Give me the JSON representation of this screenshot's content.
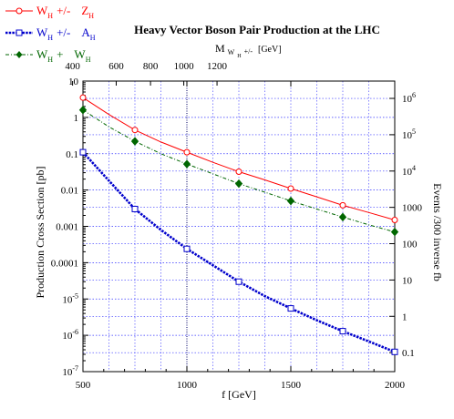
{
  "chart_data": {
    "type": "line",
    "title": "Heavy Vector Boson Pair Production at the LHC",
    "xlabel": "f [GeV]",
    "ylabel": "Production Cross Section [pb]",
    "y2label": "Events /300 inverse fb",
    "top_axis_label": "M_{W_{H}+/-} [GeV]",
    "top_axis_label_parts": {
      "main": "M",
      "sub1": "W",
      "sub2": "H",
      "sup": "+/-",
      "unit": "[GeV]"
    },
    "xlim": [
      500,
      2000
    ],
    "ylim": [
      1e-07,
      10
    ],
    "y_scale": "log",
    "grid": true,
    "legend_position": "top-left, outside plot",
    "x_ticks": [
      {
        "value": 500,
        "label": "500"
      },
      {
        "value": 1000,
        "label": "1000"
      },
      {
        "value": 1500,
        "label": "1500"
      },
      {
        "value": 2000,
        "label": "2000"
      }
    ],
    "y_ticks": [
      {
        "value": 10,
        "label": "10"
      },
      {
        "value": 1,
        "label": "1"
      },
      {
        "value": 0.1,
        "label": "0.1"
      },
      {
        "value": 0.01,
        "label": "0.01"
      },
      {
        "value": 0.001,
        "label": "0.001"
      },
      {
        "value": 0.0001,
        "label": "0.0001"
      },
      {
        "value": 1e-05,
        "label_base": "10",
        "label_exp": "-5"
      },
      {
        "value": 1e-06,
        "label_base": "10",
        "label_exp": "-6"
      },
      {
        "value": 1e-07,
        "label_base": "10",
        "label_exp": "-7"
      }
    ],
    "y2_ticks": [
      {
        "value": 1000000.0,
        "label_base": "10",
        "label_exp": "6"
      },
      {
        "value": 100000.0,
        "label_base": "10",
        "label_exp": "5"
      },
      {
        "value": 10000.0,
        "label_base": "10",
        "label_exp": "4"
      },
      {
        "value": 1000,
        "label": "1000"
      },
      {
        "value": 100,
        "label": "100"
      },
      {
        "value": 10,
        "label": "10"
      },
      {
        "value": 1,
        "label": "1"
      },
      {
        "value": 0.1,
        "label": "0.1"
      }
    ],
    "top_ticks": [
      {
        "f": 450,
        "label": "400"
      },
      {
        "f": 660,
        "label": "600"
      },
      {
        "f": 825,
        "label": "800"
      },
      {
        "f": 985,
        "label": "1000"
      },
      {
        "f": 1145,
        "label": "1200"
      }
    ],
    "series": [
      {
        "name": "W_H +/- Z_H",
        "label_parts": [
          "W",
          "H",
          "+/-",
          "Z",
          "H"
        ],
        "color": "#ff0000",
        "line_style": "solid",
        "marker": "circle-open",
        "x": [
          500,
          750,
          1000,
          1250,
          1500,
          1750,
          2000
        ],
        "y": [
          3.5,
          0.45,
          0.11,
          0.032,
          0.011,
          0.0038,
          0.0015
        ],
        "curve_x": [
          500,
          625,
          750,
          875,
          1000,
          1125,
          1250,
          1375,
          1500,
          1625,
          1750,
          1875,
          2000
        ],
        "curve_y": [
          3.5,
          1.2,
          0.45,
          0.21,
          0.11,
          0.058,
          0.032,
          0.019,
          0.011,
          0.0065,
          0.0038,
          0.0024,
          0.0015
        ]
      },
      {
        "name": "W_H +/- A_H",
        "label_parts": [
          "W",
          "H",
          "+/-",
          "A",
          "H"
        ],
        "color": "#0000cc",
        "line_style": "dense-dotted",
        "marker": "square-open",
        "x": [
          500,
          750,
          1000,
          1250,
          1500,
          1750,
          2000
        ],
        "y": [
          0.11,
          0.003,
          0.00024,
          3e-05,
          5.5e-06,
          1.3e-06,
          3.5e-07
        ],
        "curve_x": [
          500,
          625,
          750,
          875,
          1000,
          1125,
          1250,
          1375,
          1500,
          1625,
          1750,
          1875,
          2000
        ],
        "curve_y": [
          0.11,
          0.018,
          0.003,
          0.0008,
          0.00024,
          8.5e-05,
          3e-05,
          1.2e-05,
          5.5e-06,
          2.6e-06,
          1.3e-06,
          6.8e-07,
          3.5e-07
        ]
      },
      {
        "name": "W_H + W_H",
        "label_parts": [
          "W",
          "H",
          "+",
          "W",
          "H"
        ],
        "color": "#006600",
        "line_style": "dash-dot",
        "marker": "diamond-filled",
        "x": [
          500,
          750,
          1000,
          1250,
          1500,
          1750,
          2000
        ],
        "y": [
          1.6,
          0.22,
          0.052,
          0.015,
          0.005,
          0.0018,
          0.0007
        ],
        "curve_x": [
          500,
          625,
          750,
          875,
          1000,
          1125,
          1250,
          1375,
          1500,
          1625,
          1750,
          1875,
          2000
        ],
        "curve_y": [
          1.6,
          0.55,
          0.22,
          0.1,
          0.052,
          0.028,
          0.015,
          0.0087,
          0.005,
          0.003,
          0.0018,
          0.0011,
          0.0007
        ]
      }
    ]
  }
}
